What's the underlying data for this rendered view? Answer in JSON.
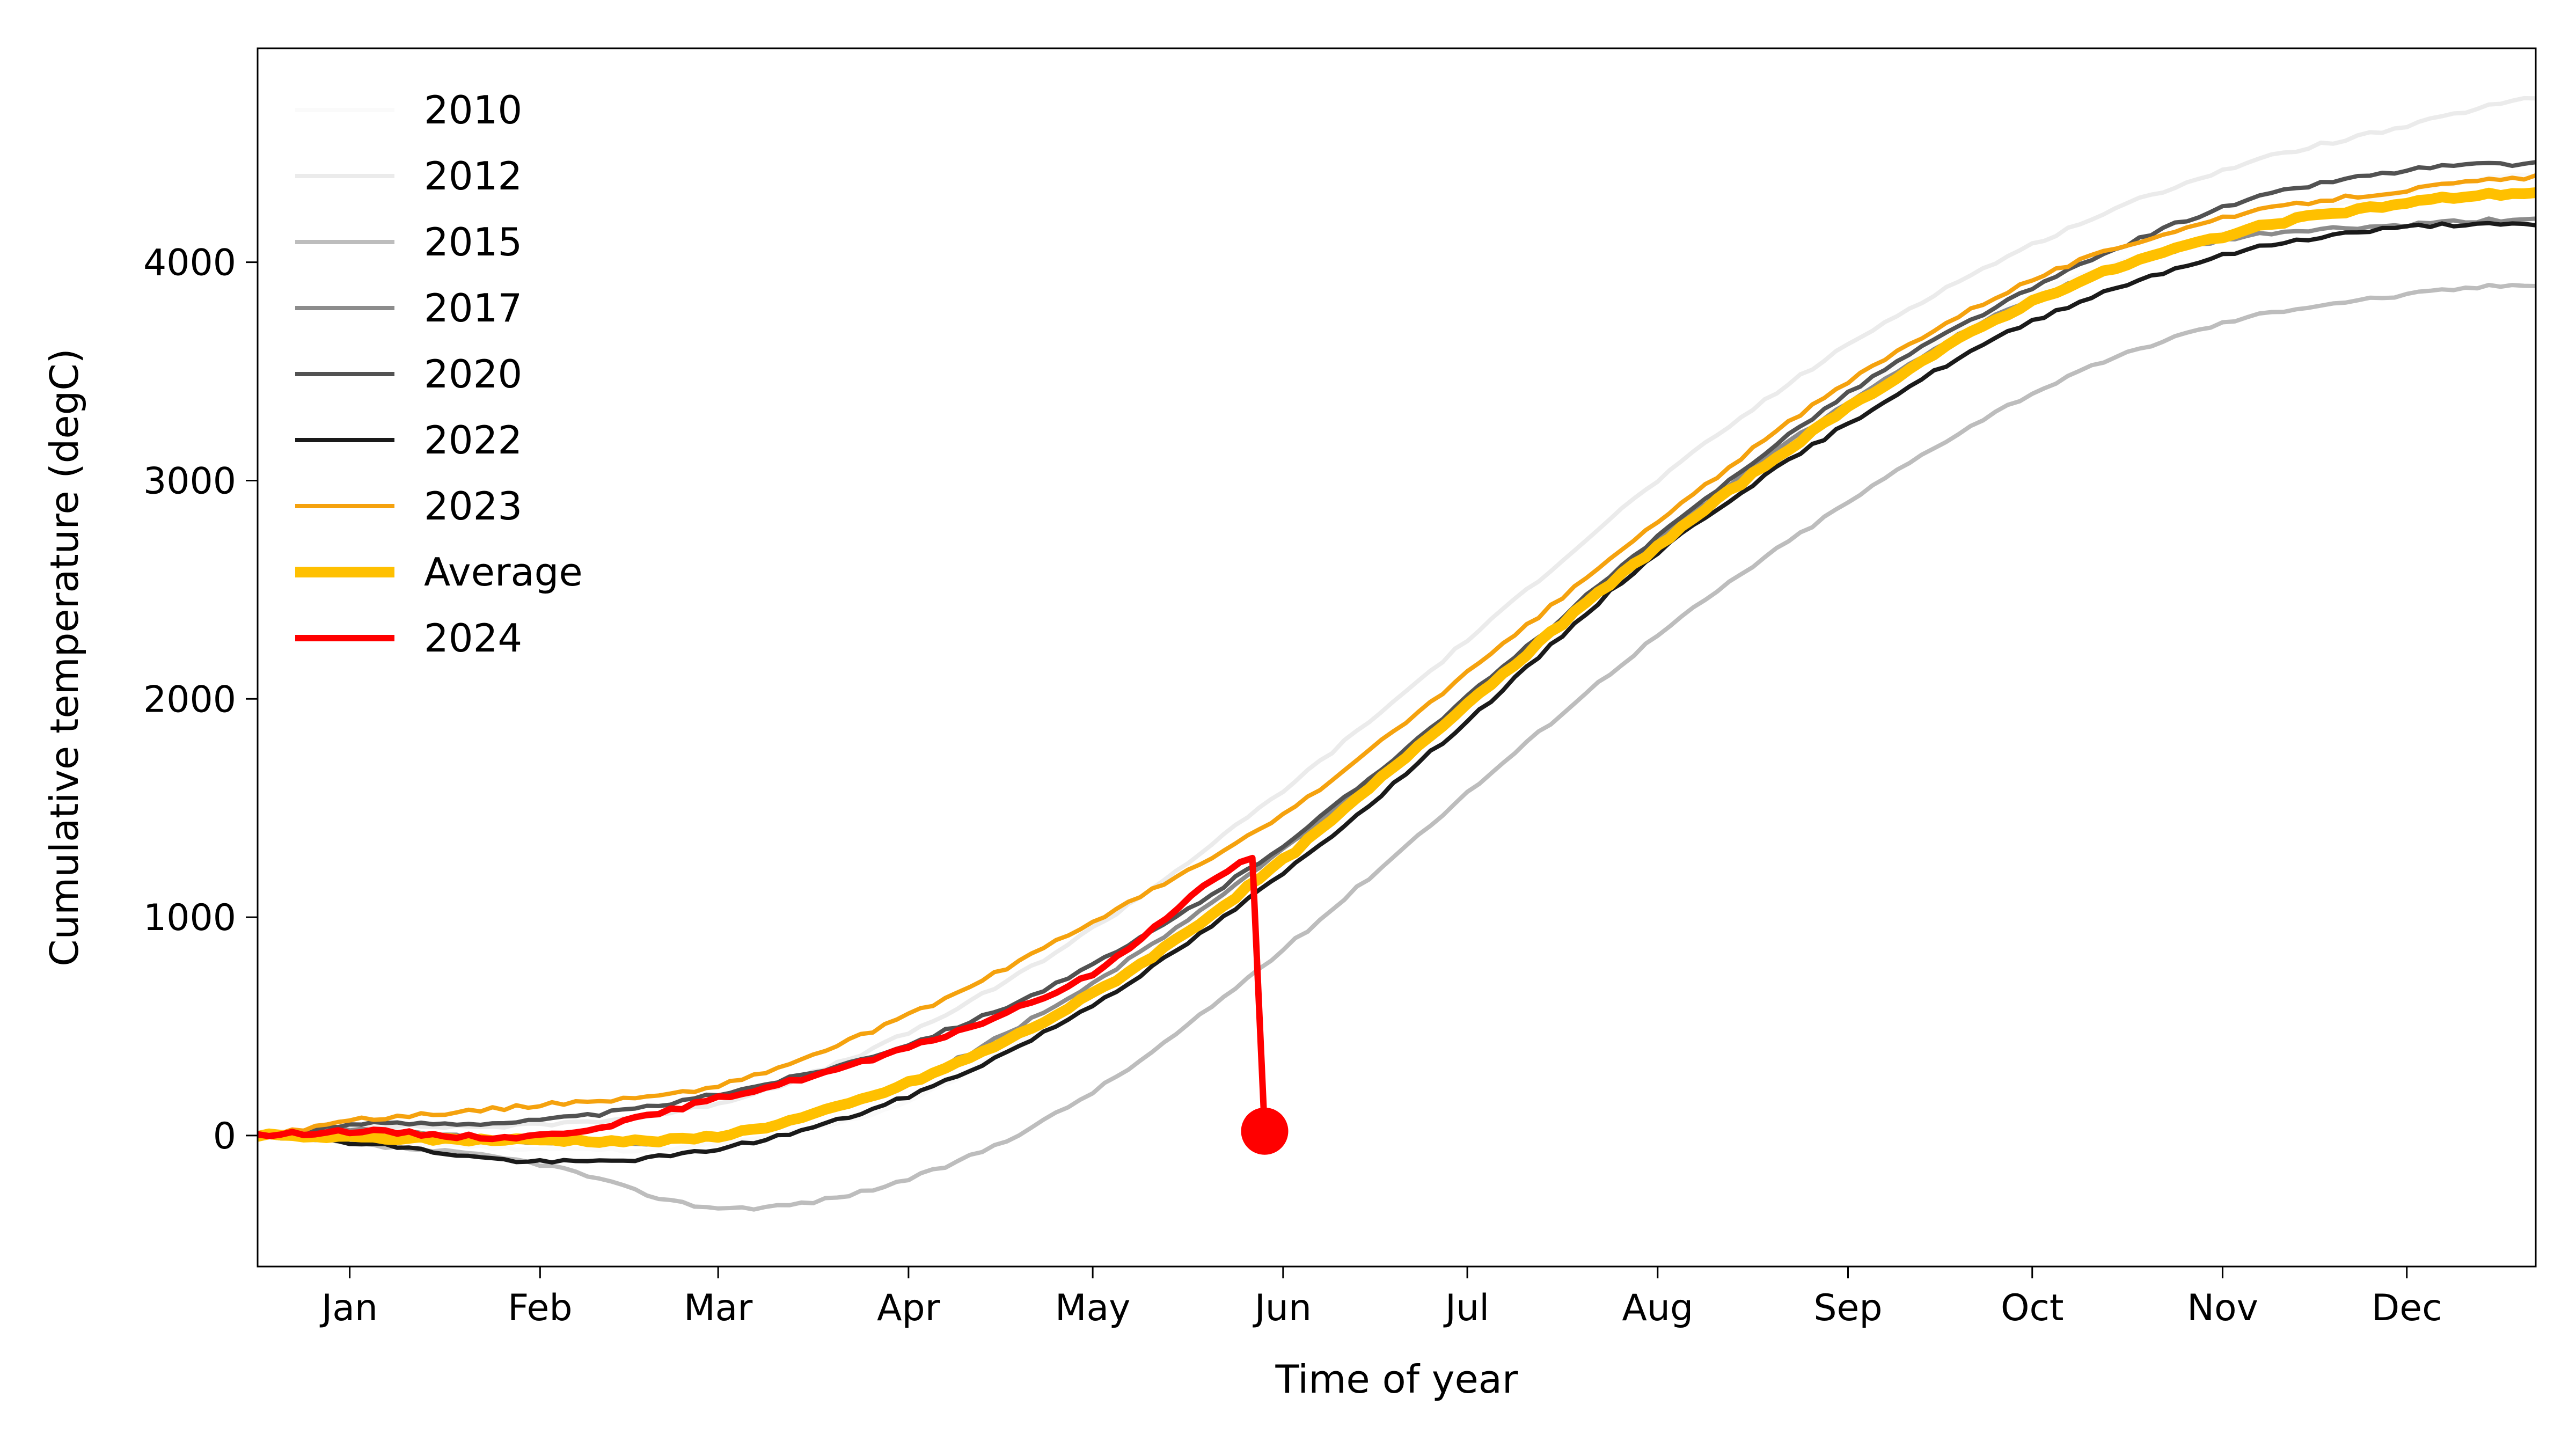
{
  "chart_data": {
    "type": "line",
    "title": "",
    "xlabel": "Time of year",
    "ylabel": "Cumulative temperature (degC)",
    "x_ticks": [
      {
        "label": "Jan",
        "day": 15
      },
      {
        "label": "Feb",
        "day": 46
      },
      {
        "label": "Mar",
        "day": 75
      },
      {
        "label": "Apr",
        "day": 106
      },
      {
        "label": "May",
        "day": 136
      },
      {
        "label": "Jun",
        "day": 167
      },
      {
        "label": "Jul",
        "day": 197
      },
      {
        "label": "Aug",
        "day": 228
      },
      {
        "label": "Sep",
        "day": 259
      },
      {
        "label": "Oct",
        "day": 289
      },
      {
        "label": "Nov",
        "day": 320
      },
      {
        "label": "Dec",
        "day": 350
      }
    ],
    "xlim": [
      0,
      371
    ],
    "ylim": [
      -600,
      4980
    ],
    "y_ticks": [
      0,
      1000,
      2000,
      3000,
      4000
    ],
    "grid": false,
    "legend": {
      "location": "top-left",
      "frame": false
    },
    "series": [
      {
        "name": "2010",
        "color": "#fafafa",
        "width": 2,
        "points": [
          [
            0,
            0
          ],
          [
            15,
            -20
          ],
          [
            46,
            -60
          ],
          [
            75,
            -40
          ],
          [
            106,
            160
          ],
          [
            136,
            650
          ],
          [
            167,
            1320
          ],
          [
            197,
            2000
          ],
          [
            228,
            2740
          ],
          [
            259,
            3380
          ],
          [
            289,
            3850
          ],
          [
            320,
            4130
          ],
          [
            350,
            4320
          ],
          [
            371,
            4400
          ]
        ]
      },
      {
        "name": "2012",
        "color": "#ebebeb",
        "width": 2,
        "points": [
          [
            0,
            0
          ],
          [
            15,
            40
          ],
          [
            46,
            50
          ],
          [
            75,
            150
          ],
          [
            106,
            470
          ],
          [
            136,
            950
          ],
          [
            167,
            1580
          ],
          [
            197,
            2270
          ],
          [
            228,
            3000
          ],
          [
            259,
            3620
          ],
          [
            289,
            4080
          ],
          [
            320,
            4420
          ],
          [
            350,
            4620
          ],
          [
            371,
            4750
          ]
        ]
      },
      {
        "name": "2015",
        "color": "#bdbdbd",
        "width": 2,
        "points": [
          [
            0,
            0
          ],
          [
            15,
            -40
          ],
          [
            46,
            -130
          ],
          [
            75,
            -330
          ],
          [
            106,
            -200
          ],
          [
            136,
            200
          ],
          [
            167,
            850
          ],
          [
            197,
            1570
          ],
          [
            228,
            2290
          ],
          [
            259,
            2900
          ],
          [
            289,
            3400
          ],
          [
            320,
            3720
          ],
          [
            350,
            3850
          ],
          [
            371,
            3900
          ]
        ]
      },
      {
        "name": "2017",
        "color": "#8c8c8c",
        "width": 2,
        "points": [
          [
            0,
            0
          ],
          [
            15,
            30
          ],
          [
            46,
            -30
          ],
          [
            75,
            0
          ],
          [
            106,
            250
          ],
          [
            136,
            700
          ],
          [
            167,
            1310
          ],
          [
            197,
            2000
          ],
          [
            228,
            2730
          ],
          [
            259,
            3360
          ],
          [
            289,
            3830
          ],
          [
            320,
            4100
          ],
          [
            350,
            4170
          ],
          [
            371,
            4200
          ]
        ]
      },
      {
        "name": "2020",
        "color": "#525252",
        "width": 2,
        "points": [
          [
            0,
            0
          ],
          [
            15,
            50
          ],
          [
            46,
            70
          ],
          [
            75,
            190
          ],
          [
            106,
            420
          ],
          [
            136,
            780
          ],
          [
            167,
            1330
          ],
          [
            197,
            2010
          ],
          [
            228,
            2740
          ],
          [
            259,
            3400
          ],
          [
            289,
            3880
          ],
          [
            320,
            4250
          ],
          [
            350,
            4420
          ],
          [
            371,
            4450
          ]
        ]
      },
      {
        "name": "2022",
        "color": "#1a1a1a",
        "width": 2,
        "points": [
          [
            0,
            0
          ],
          [
            15,
            -30
          ],
          [
            46,
            -120
          ],
          [
            75,
            -60
          ],
          [
            106,
            180
          ],
          [
            136,
            600
          ],
          [
            167,
            1200
          ],
          [
            197,
            1900
          ],
          [
            228,
            2670
          ],
          [
            259,
            3260
          ],
          [
            289,
            3730
          ],
          [
            320,
            4030
          ],
          [
            350,
            4160
          ],
          [
            371,
            4170
          ]
        ]
      },
      {
        "name": "2023",
        "color": "#f5a20e",
        "width": 2,
        "points": [
          [
            0,
            0
          ],
          [
            15,
            70
          ],
          [
            46,
            140
          ],
          [
            75,
            230
          ],
          [
            106,
            550
          ],
          [
            136,
            980
          ],
          [
            167,
            1470
          ],
          [
            197,
            2120
          ],
          [
            228,
            2810
          ],
          [
            259,
            3450
          ],
          [
            289,
            3920
          ],
          [
            320,
            4200
          ],
          [
            350,
            4330
          ],
          [
            371,
            4390
          ]
        ]
      },
      {
        "name": "Average",
        "color": "#ffc000",
        "width": 5,
        "points": [
          [
            0,
            0
          ],
          [
            15,
            -10
          ],
          [
            46,
            -20
          ],
          [
            75,
            0
          ],
          [
            106,
            240
          ],
          [
            136,
            650
          ],
          [
            167,
            1260
          ],
          [
            197,
            1980
          ],
          [
            228,
            2700
          ],
          [
            259,
            3330
          ],
          [
            289,
            3820
          ],
          [
            320,
            4120
          ],
          [
            350,
            4270
          ],
          [
            371,
            4320
          ]
        ]
      },
      {
        "name": "2024",
        "color": "#ff0000",
        "width": 3,
        "points": [
          [
            0,
            0
          ],
          [
            15,
            20
          ],
          [
            46,
            0
          ],
          [
            75,
            170
          ],
          [
            106,
            400
          ],
          [
            136,
            740
          ],
          [
            162,
            1270
          ],
          [
            164,
            20
          ]
        ],
        "end_marker": true
      }
    ]
  }
}
